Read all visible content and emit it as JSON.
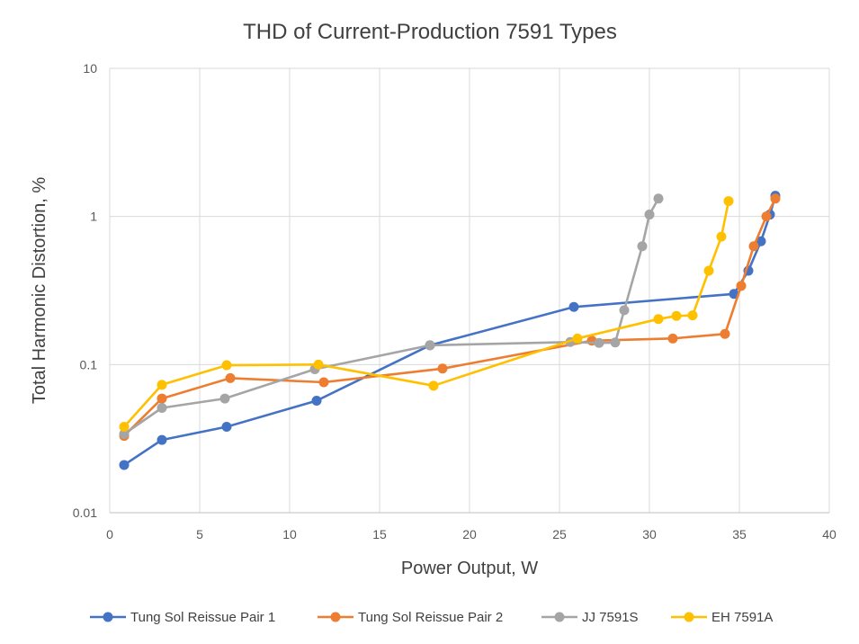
{
  "chart_data": {
    "type": "line",
    "title": "THD of Current-Production 7591 Types",
    "xlabel": "Power Output, W",
    "ylabel": "Total Harmonic Distortion, %",
    "xlim": [
      0,
      40
    ],
    "ylim": [
      0.01,
      10
    ],
    "yscale": "log",
    "grid": true,
    "legend": "bottom",
    "x_ticks": [
      "0",
      "5",
      "10",
      "15",
      "20",
      "25",
      "30",
      "35",
      "40"
    ],
    "y_ticks": [
      "0.01",
      "0.1",
      "1",
      "10"
    ],
    "series": [
      {
        "name": "Tung Sol Reissue Pair 1",
        "color": "#4472C4",
        "points": [
          [
            0.8,
            0.021
          ],
          [
            2.9,
            0.031
          ],
          [
            6.5,
            0.038
          ],
          [
            11.5,
            0.057
          ],
          [
            17.8,
            0.135
          ],
          [
            25.8,
            0.245
          ],
          [
            34.7,
            0.3
          ],
          [
            35.5,
            0.43
          ],
          [
            36.2,
            0.68
          ],
          [
            36.7,
            1.03
          ],
          [
            37.0,
            1.38
          ]
        ]
      },
      {
        "name": "Tung Sol Reissue Pair 2",
        "color": "#ED7D31",
        "points": [
          [
            0.8,
            0.033
          ],
          [
            2.9,
            0.059
          ],
          [
            6.7,
            0.081
          ],
          [
            11.9,
            0.076
          ],
          [
            18.5,
            0.094
          ],
          [
            26.8,
            0.145
          ],
          [
            31.3,
            0.15
          ],
          [
            34.2,
            0.161
          ],
          [
            35.1,
            0.34
          ],
          [
            35.8,
            0.63
          ],
          [
            36.5,
            1.0
          ],
          [
            37.0,
            1.32
          ]
        ]
      },
      {
        "name": "JJ 7591S",
        "color": "#A5A5A5",
        "points": [
          [
            0.8,
            0.034
          ],
          [
            2.9,
            0.051
          ],
          [
            6.4,
            0.059
          ],
          [
            11.4,
            0.093
          ],
          [
            17.8,
            0.135
          ],
          [
            25.6,
            0.142
          ],
          [
            27.2,
            0.14
          ],
          [
            28.1,
            0.141
          ],
          [
            28.6,
            0.233
          ],
          [
            29.6,
            0.63
          ],
          [
            30.0,
            1.03
          ],
          [
            30.5,
            1.32
          ]
        ]
      },
      {
        "name": "EH 7591A",
        "color": "#FFC000",
        "points": [
          [
            0.8,
            0.038
          ],
          [
            2.9,
            0.073
          ],
          [
            6.5,
            0.099
          ],
          [
            11.6,
            0.1
          ],
          [
            18.0,
            0.072
          ],
          [
            26.0,
            0.15
          ],
          [
            30.5,
            0.203
          ],
          [
            31.5,
            0.213
          ],
          [
            32.4,
            0.215
          ],
          [
            33.3,
            0.43
          ],
          [
            34.0,
            0.73
          ],
          [
            34.4,
            1.27
          ]
        ]
      }
    ]
  }
}
